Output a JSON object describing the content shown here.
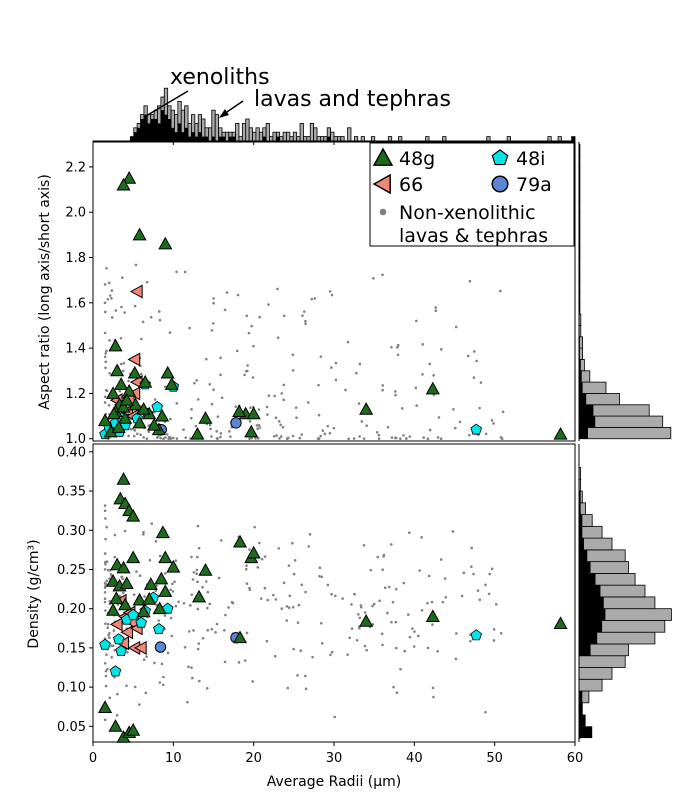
{
  "chart_data": {
    "type": "scatter",
    "xlabel": "Average Radii (μm)",
    "x_ticks": [
      "0",
      "10",
      "20",
      "30",
      "40",
      "50",
      "60"
    ],
    "xlim": [
      0,
      60
    ],
    "annotations": {
      "xenoliths": "xenoliths",
      "lavas": "lavas and tephras"
    },
    "legend_position": "upper-right of top panel",
    "legend": [
      {
        "key": "48g",
        "label": "48g",
        "marker": "triangle",
        "color": "#1e6b1e"
      },
      {
        "key": "48i",
        "label": "48i",
        "marker": "pentagon",
        "color": "#00e5e5"
      },
      {
        "key": "66",
        "label": "66",
        "marker": "left-triangle",
        "color": "#f08878"
      },
      {
        "key": "79a",
        "label": "79a",
        "marker": "circle",
        "color": "#5b86d6"
      },
      {
        "key": "bg",
        "label": "Non-xenolithic\nlavas & tephras",
        "marker": "dot",
        "color": "#808080"
      }
    ],
    "panels": {
      "aspect": {
        "ylabel": "Aspect ratio (long axis/short axis)",
        "ylim": [
          0.99,
          2.31
        ],
        "y_ticks": [
          "1.0",
          "1.2",
          "1.4",
          "1.6",
          "1.8",
          "2.0",
          "2.2"
        ],
        "series": {
          "48g": [
            [
              4.5,
              2.15
            ],
            [
              3.8,
              2.12
            ],
            [
              5.8,
              1.9
            ],
            [
              9.0,
              1.86
            ],
            [
              2.8,
              1.41
            ],
            [
              3.0,
              1.3
            ],
            [
              5.2,
              1.29
            ],
            [
              3.5,
              1.24
            ],
            [
              9.3,
              1.29
            ],
            [
              9.8,
              1.24
            ],
            [
              6.5,
              1.25
            ],
            [
              2.5,
              1.2
            ],
            [
              3.3,
              1.15
            ],
            [
              4.5,
              1.21
            ],
            [
              5.3,
              1.15
            ],
            [
              2.8,
              1.12
            ],
            [
              4.0,
              1.09
            ],
            [
              5.8,
              1.07
            ],
            [
              7.0,
              1.11
            ],
            [
              8.2,
              1.04
            ],
            [
              8.6,
              1.1
            ],
            [
              1.5,
              1.08
            ],
            [
              13.0,
              1.02
            ],
            [
              14.0,
              1.09
            ],
            [
              19.0,
              1.11
            ],
            [
              18.2,
              1.12
            ],
            [
              20.0,
              1.11
            ],
            [
              19.7,
              1.03
            ],
            [
              34.0,
              1.13
            ],
            [
              42.3,
              1.22
            ],
            [
              58.2,
              1.02
            ],
            [
              2.2,
              1.03
            ],
            [
              3.2,
              1.05
            ],
            [
              6.3,
              1.13
            ],
            [
              2.6,
              1.11
            ],
            [
              3.8,
              1.14
            ],
            [
              4.2,
              1.17
            ],
            [
              7.6,
              1.06
            ]
          ],
          "48i": [
            [
              1.5,
              1.02
            ],
            [
              2.0,
              1.05
            ],
            [
              3.3,
              1.03
            ],
            [
              4.0,
              1.06
            ],
            [
              5.5,
              1.09
            ],
            [
              6.5,
              1.24
            ],
            [
              8.0,
              1.14
            ],
            [
              10.0,
              1.23
            ],
            [
              6.8,
              1.11
            ],
            [
              2.8,
              1.07
            ],
            [
              47.7,
              1.04
            ],
            [
              3.6,
              1.09
            ]
          ],
          "66": [
            [
              5.5,
              1.65
            ],
            [
              5.2,
              1.35
            ],
            [
              3.5,
              1.15
            ],
            [
              4.3,
              1.12
            ],
            [
              4.5,
              1.18
            ],
            [
              5.2,
              1.2
            ],
            [
              3.0,
              1.17
            ],
            [
              3.8,
              1.08
            ],
            [
              5.5,
              1.25
            ],
            [
              5.0,
              1.1
            ]
          ],
          "79a": [
            [
              8.5,
              1.04
            ],
            [
              17.8,
              1.07
            ]
          ]
        }
      },
      "density": {
        "ylabel": "Density (g/cm³)",
        "ylim": [
          0.03,
          0.41
        ],
        "y_ticks": [
          "0.05",
          "0.10",
          "0.15",
          "0.20",
          "0.25",
          "0.30",
          "0.35",
          "0.40"
        ],
        "series": {
          "48g": [
            [
              3.8,
              0.365
            ],
            [
              3.4,
              0.34
            ],
            [
              4.0,
              0.334
            ],
            [
              4.5,
              0.325
            ],
            [
              5.0,
              0.318
            ],
            [
              8.7,
              0.297
            ],
            [
              3.0,
              0.256
            ],
            [
              3.8,
              0.252
            ],
            [
              5.0,
              0.265
            ],
            [
              9.0,
              0.265
            ],
            [
              10.0,
              0.253
            ],
            [
              14.0,
              0.249
            ],
            [
              18.3,
              0.285
            ],
            [
              19.7,
              0.265
            ],
            [
              20.0,
              0.271
            ],
            [
              2.5,
              0.235
            ],
            [
              3.3,
              0.229
            ],
            [
              4.2,
              0.232
            ],
            [
              7.2,
              0.231
            ],
            [
              8.5,
              0.238
            ],
            [
              2.9,
              0.213
            ],
            [
              5.8,
              0.211
            ],
            [
              7.0,
              0.212
            ],
            [
              9.0,
              0.222
            ],
            [
              13.2,
              0.215
            ],
            [
              2.5,
              0.198
            ],
            [
              4.0,
              0.205
            ],
            [
              6.3,
              0.196
            ],
            [
              8.3,
              0.2
            ],
            [
              18.3,
              0.163
            ],
            [
              34.0,
              0.184
            ],
            [
              42.3,
              0.19
            ],
            [
              58.2,
              0.181
            ],
            [
              1.5,
              0.074
            ],
            [
              2.8,
              0.05
            ],
            [
              3.8,
              0.036
            ],
            [
              4.5,
              0.042
            ],
            [
              5.0,
              0.045
            ]
          ],
          "48i": [
            [
              1.5,
              0.154
            ],
            [
              2.8,
              0.12
            ],
            [
              3.5,
              0.146
            ],
            [
              4.2,
              0.186
            ],
            [
              5.0,
              0.192
            ],
            [
              6.5,
              0.197
            ],
            [
              7.5,
              0.214
            ],
            [
              8.2,
              0.174
            ],
            [
              9.3,
              0.2
            ],
            [
              6.0,
              0.182
            ],
            [
              3.2,
              0.161
            ],
            [
              47.7,
              0.166
            ]
          ],
          "66": [
            [
              3.5,
              0.21
            ],
            [
              4.0,
              0.19
            ],
            [
              4.3,
              0.17
            ],
            [
              5.2,
              0.15
            ],
            [
              5.0,
              0.182
            ],
            [
              4.6,
              0.195
            ],
            [
              3.0,
              0.18
            ],
            [
              3.8,
              0.156
            ],
            [
              6.0,
              0.15
            ],
            [
              5.5,
              0.175
            ]
          ],
          "79a": [
            [
              8.4,
              0.151
            ],
            [
              17.8,
              0.163
            ]
          ]
        }
      }
    },
    "histograms": {
      "radii_xenoliths_counts": [
        0,
        0,
        0,
        0,
        0,
        0,
        0,
        0,
        0,
        0,
        0,
        1,
        2,
        3,
        5,
        6,
        4,
        5,
        5,
        4,
        7,
        6,
        5,
        3,
        2,
        4,
        2,
        3,
        1,
        2,
        1,
        2,
        1,
        1,
        0,
        1,
        0,
        1,
        1,
        0,
        1,
        1,
        0,
        0,
        0,
        0,
        0,
        0,
        0,
        0,
        1,
        0,
        0,
        0,
        1,
        0,
        0,
        0,
        0,
        0,
        0,
        0,
        0,
        0,
        0,
        0,
        0,
        0,
        0,
        1,
        0,
        0,
        0,
        0,
        0,
        0,
        0,
        0,
        0,
        0,
        0,
        0,
        0,
        0,
        0,
        0,
        0,
        0,
        0,
        0,
        0,
        0,
        0,
        0,
        0,
        0,
        0,
        0,
        0,
        0,
        0,
        0,
        0,
        0,
        0,
        0,
        0,
        0,
        0,
        0,
        0,
        0,
        0,
        0,
        0,
        0,
        0,
        0,
        0,
        0,
        0,
        0,
        0,
        0,
        0,
        0,
        0,
        0,
        0,
        0,
        0,
        0,
        0,
        0,
        0,
        0,
        0,
        0,
        0,
        0,
        0,
        1,
        0
      ],
      "radii_lavas_counts": [
        0,
        0,
        0,
        0,
        0,
        0,
        0,
        0,
        0,
        0,
        0,
        1,
        3,
        4,
        6,
        8,
        6,
        6,
        7,
        8,
        10,
        12,
        8,
        7,
        6,
        9,
        7,
        8,
        4,
        6,
        4,
        6,
        5,
        3,
        3,
        7,
        6,
        3,
        2,
        2,
        2,
        2,
        4,
        1,
        4,
        5,
        3,
        2,
        3,
        2,
        3,
        4,
        1,
        2,
        2,
        1,
        2,
        2,
        1,
        2,
        1,
        4,
        1,
        1,
        4,
        3,
        1,
        1,
        1,
        3,
        2,
        1,
        1,
        1,
        0,
        3,
        0,
        1,
        0,
        1,
        0,
        0,
        1,
        0,
        0,
        0,
        0,
        1,
        0,
        0,
        1,
        0,
        0,
        0,
        0,
        0,
        0,
        0,
        1,
        0,
        0,
        0,
        0,
        1,
        0,
        0,
        0,
        0,
        0,
        0,
        0,
        0,
        0,
        0,
        0,
        0,
        1,
        0,
        0,
        0,
        0,
        0,
        1,
        0,
        0,
        0,
        0,
        0,
        0,
        0,
        0,
        0,
        0,
        0,
        1,
        0,
        0,
        1,
        0,
        0,
        0,
        1
      ],
      "aspect_bins": [
        1.0,
        1.05,
        1.1,
        1.15,
        1.2,
        1.25,
        1.3,
        1.35,
        1.4,
        1.45,
        1.5,
        1.55,
        1.6,
        1.65,
        1.7,
        1.75,
        1.8,
        1.85,
        1.9,
        1.95,
        2.0,
        2.05,
        2.1,
        2.15,
        2.2,
        2.25,
        2.3
      ],
      "aspect_xenoliths_counts": [
        10,
        18,
        16,
        8,
        4,
        3,
        2,
        1,
        1,
        0,
        0,
        0,
        0,
        1,
        0,
        0,
        0,
        0,
        1,
        0,
        0,
        0,
        0,
        1,
        1,
        0
      ],
      "aspect_lavas_counts": [
        102,
        93,
        78,
        45,
        30,
        12,
        6,
        4,
        4,
        2,
        2,
        1,
        1,
        1,
        1,
        1,
        1,
        1,
        1,
        1,
        1,
        1,
        1,
        1,
        1,
        1
      ],
      "density_bins": [
        0.035,
        0.05,
        0.065,
        0.08,
        0.095,
        0.11,
        0.125,
        0.14,
        0.155,
        0.17,
        0.185,
        0.2,
        0.215,
        0.23,
        0.245,
        0.26,
        0.275,
        0.29,
        0.305,
        0.32,
        0.335,
        0.35,
        0.365,
        0.38,
        0.395
      ],
      "density_xenoliths_counts": [
        8,
        4,
        2,
        2,
        0,
        0,
        0,
        7,
        11,
        14,
        16,
        15,
        13,
        10,
        7,
        5,
        3,
        2,
        2,
        1,
        1,
        0,
        0,
        0
      ],
      "density_lavas_counts": [
        1,
        1,
        2,
        6,
        14,
        20,
        28,
        30,
        46,
        52,
        56,
        46,
        40,
        34,
        30,
        28,
        20,
        14,
        8,
        4,
        2,
        1,
        1,
        0
      ]
    }
  }
}
